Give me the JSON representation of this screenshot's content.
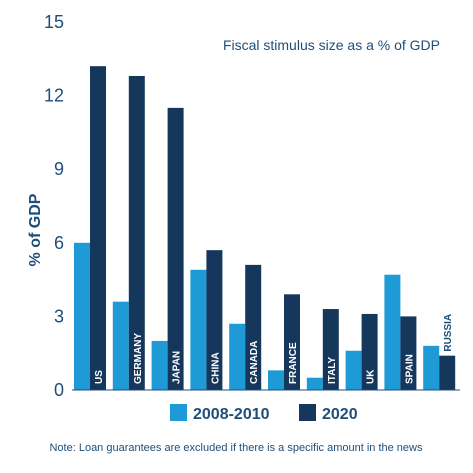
{
  "chart_data": {
    "type": "bar",
    "subtitle": "Fiscal stimulus size as a % of GDP",
    "ylabel": "% of GDP",
    "ylim": [
      0,
      15
    ],
    "yticks": [
      "0",
      "3",
      "6",
      "9",
      "12",
      "15"
    ],
    "grid": false,
    "legend_position": "bottom",
    "categories": [
      "US",
      "GERMANY",
      "JAPAN",
      "CHINA",
      "CANADA",
      "FRANCE",
      "ITALY",
      "UK",
      "SPAIN",
      "RUSSIA"
    ],
    "series": [
      {
        "name": "2008-2010",
        "color": "#1e9ad6",
        "values": [
          6.0,
          3.6,
          2.0,
          4.9,
          2.7,
          0.8,
          0.5,
          1.6,
          4.7,
          1.8
        ]
      },
      {
        "name": "2020",
        "color": "#16375c",
        "values": [
          13.2,
          12.8,
          11.5,
          5.7,
          5.1,
          3.9,
          3.3,
          3.1,
          3.0,
          1.4
        ]
      }
    ],
    "note": "Note: Loan guarantees are excluded if there is a specific amount in the news"
  }
}
